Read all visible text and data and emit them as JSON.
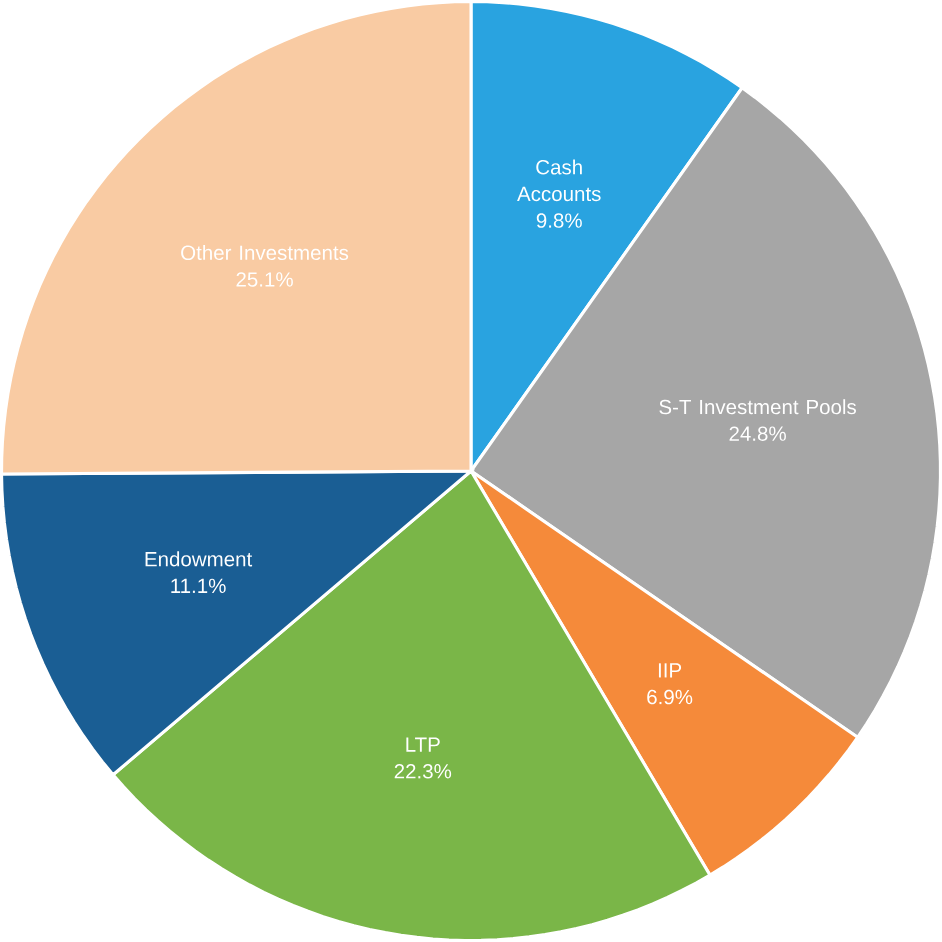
{
  "chart_data": {
    "type": "pie",
    "categories": [
      "Cash Accounts",
      "S-T Investment Pools",
      "IIP",
      "LTP",
      "Endowment",
      "Other Investments"
    ],
    "values": [
      9.8,
      24.8,
      6.9,
      22.3,
      11.1,
      25.1
    ],
    "value_labels": [
      "9.8%",
      "24.8%",
      "6.9%",
      "22.3%",
      "11.1%",
      "25.1%"
    ],
    "colors": [
      "#29a3e0",
      "#a6a6a6",
      "#f58a3a",
      "#7ab648",
      "#1a5e94",
      "#f9cba3"
    ]
  }
}
